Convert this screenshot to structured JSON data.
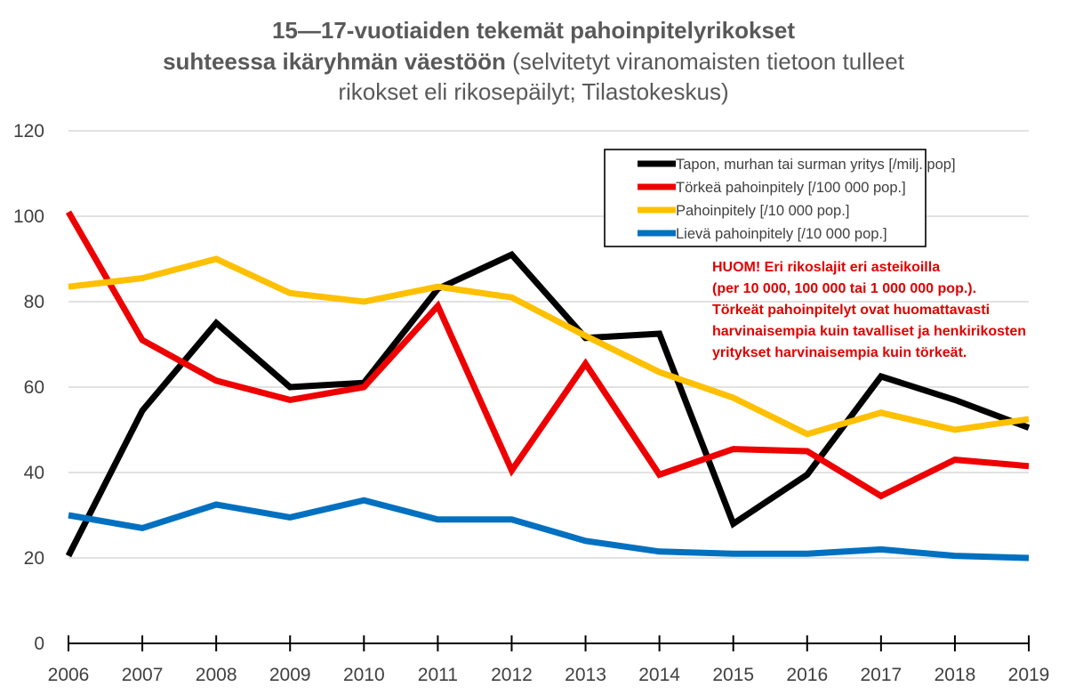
{
  "chart_data": {
    "type": "line",
    "title_line1": "15—17-vuotiaiden tekemät pahoinpitelyrikokset",
    "title_line2_bold": "suhteessa ikäryhmän väestöön",
    "title_line2_rest": " (selvitetyt viranomaisten tietoon tulleet",
    "title_line3": "rikokset eli rikosepäilyt; Tilastokeskus)",
    "x": [
      "2006",
      "2007",
      "2008",
      "2009",
      "2010",
      "2011",
      "2012",
      "2013",
      "2014",
      "2015",
      "2016",
      "2017",
      "2018",
      "2019"
    ],
    "ylim": [
      0,
      120
    ],
    "yticks": [
      "0",
      "20",
      "40",
      "60",
      "80",
      "100",
      "120"
    ],
    "grid": true,
    "legend_position": "top-right",
    "series": [
      {
        "name": "Tapon, murhan tai surman yritys [/milj. pop]",
        "color": "#000000",
        "values": [
          20.5,
          54.5,
          75,
          60,
          61,
          83,
          91,
          71.5,
          72.5,
          28,
          39.5,
          62.5,
          57,
          50.5
        ]
      },
      {
        "name": "Törkeä pahoinpitely [/100 000 pop.]",
        "color": "#ee0000",
        "values": [
          101,
          71,
          61.5,
          57,
          60,
          79,
          40.5,
          65.5,
          39.5,
          45.5,
          45,
          34.5,
          43,
          41.5
        ]
      },
      {
        "name": "Pahoinpitely [/10 000 pop.]",
        "color": "#ffc000",
        "values": [
          83.5,
          85.5,
          90,
          82,
          80,
          83.5,
          81,
          72,
          63.5,
          57.5,
          49,
          54,
          50,
          52.5
        ]
      },
      {
        "name": "Lievä pahoinpitely [/10 000 pop.]",
        "color": "#0070c0",
        "values": [
          30,
          27,
          32.5,
          29.5,
          33.5,
          29,
          29,
          24,
          21.5,
          21,
          21,
          22,
          20.5,
          20
        ]
      }
    ],
    "annotation": [
      "HUOM! Eri rikoslajit eri asteikoilla",
      "(per 10 000, 100 000 tai 1 000 000 pop.).",
      "Törkeät pahoinpitelyt ovat huomattavasti",
      "harvinaisempia kuin tavalliset ja henkirikosten",
      "yritykset harvinaisempia kuin törkeät."
    ]
  }
}
